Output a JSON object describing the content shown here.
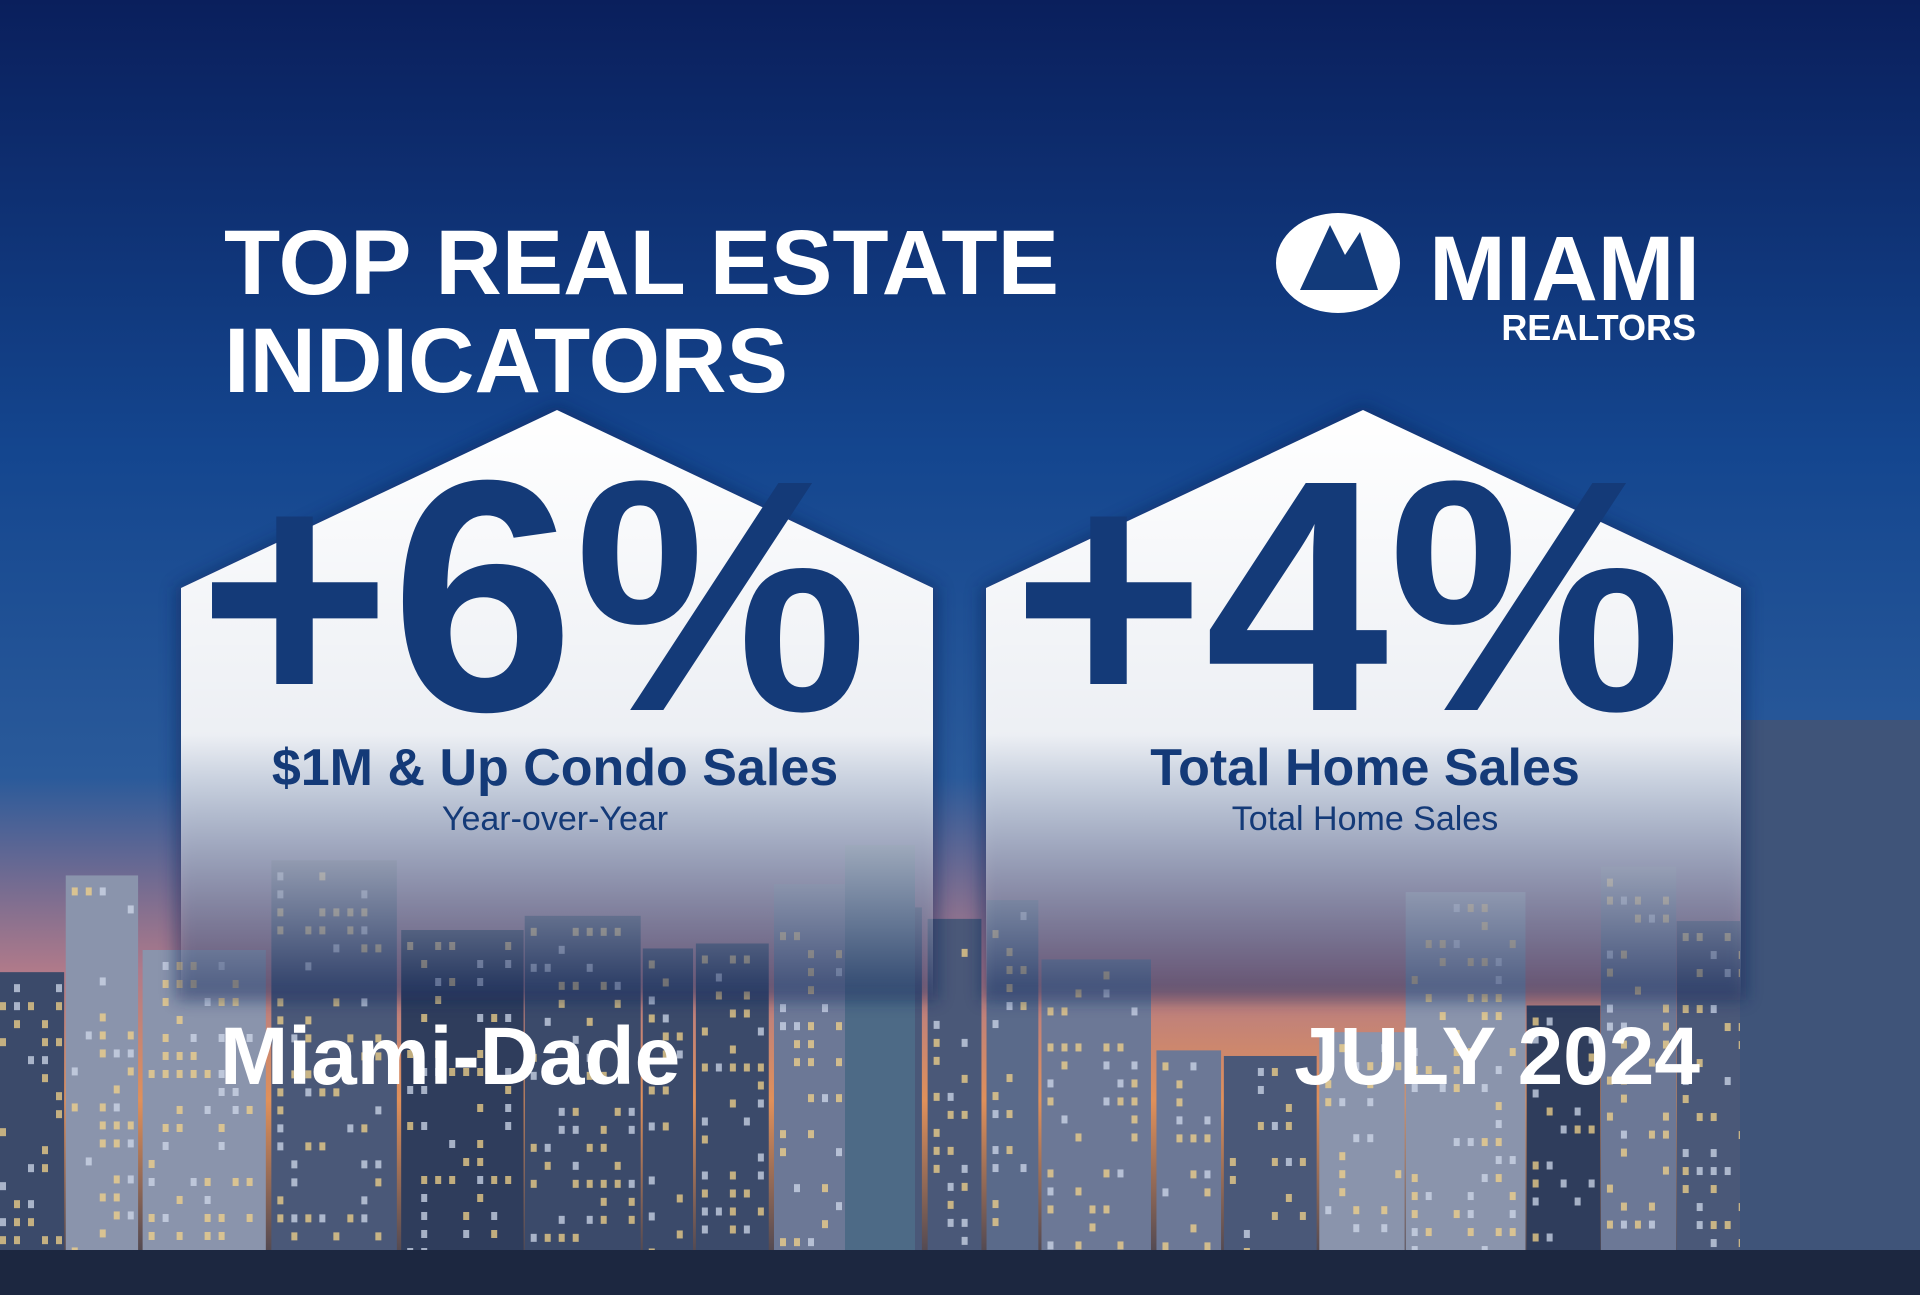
{
  "header": {
    "title_lines": [
      "TOP REAL ESTATE",
      "INDICATORS"
    ]
  },
  "logo": {
    "name": "MIAMI",
    "subtitle": "REALTORS"
  },
  "indicators": [
    {
      "value": "+6%",
      "label": "$1M & Up Condo Sales",
      "sublabel": "Year-over-Year"
    },
    {
      "value": "+4%",
      "label": "Total Home Sales",
      "sublabel": "Total Home Sales"
    }
  ],
  "footer": {
    "region": "Miami-Dade",
    "period": "JULY 2024"
  }
}
